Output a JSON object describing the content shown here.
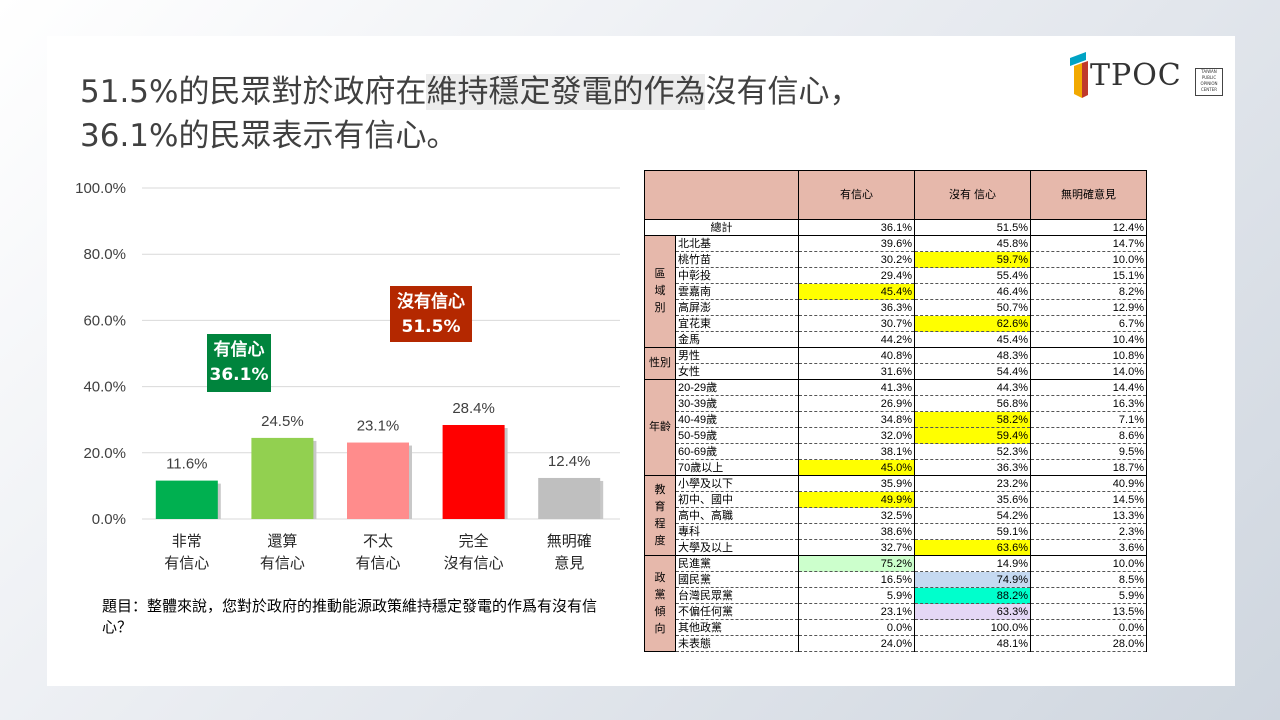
{
  "title_line1_a": "51.5%的民眾對於政府在",
  "title_line1_b": "維持穩定發電的作為",
  "title_line1_c": "沒有信心，",
  "title_line2": "36.1%的民眾表示有信心。",
  "logo_text": "TPOC",
  "logo_small": "TAIWAN PUBLIC OPINION CENTER",
  "note": "題目：整體來說，您對於政府的推動能源政策維持穩定發電的作爲有沒有信心？",
  "colors": {
    "very_confident": "#00b050",
    "somewhat_confident": "#92d050",
    "not_very": "#ff8c8c",
    "not_at_all": "#ff0000",
    "no_opinion": "#bfbfbf",
    "confident_box": "#00843d",
    "not_confident_box": "#b42800",
    "yellow": "#ffff00",
    "green_hl": "#ccffcc",
    "blue_hl": "#c5d9f1",
    "teal_hl": "#00ffcc",
    "purple_hl": "#e4d7f5"
  },
  "chart_data": {
    "type": "bar",
    "categories": [
      "非常\n有信心",
      "還算\n有信心",
      "不太\n有信心",
      "完全\n沒有信心",
      "無明確\n意見"
    ],
    "values": [
      11.6,
      24.5,
      23.1,
      28.4,
      12.4
    ],
    "value_labels": [
      "11.6%",
      "24.5%",
      "23.1%",
      "28.4%",
      "12.4%"
    ],
    "ylim": [
      0,
      100
    ],
    "yticks": [
      "0.0%",
      "20.0%",
      "40.0%",
      "60.0%",
      "80.0%",
      "100.0%"
    ],
    "grid": true,
    "annotations": [
      {
        "label": "有信心",
        "value": "36.1%"
      },
      {
        "label": "沒有信心",
        "value": "51.5%"
      }
    ]
  },
  "table": {
    "headers": [
      "有信心",
      "沒有 信心",
      "無明確意見"
    ],
    "total": {
      "label": "總計",
      "values": [
        "36.1%",
        "51.5%",
        "12.4%"
      ]
    },
    "groups": [
      {
        "name": "區域別",
        "rows": [
          {
            "label": "北北基",
            "values": [
              "39.6%",
              "45.8%",
              "14.7%"
            ],
            "hl": [
              null,
              null,
              null
            ]
          },
          {
            "label": "桃竹苗",
            "values": [
              "30.2%",
              "59.7%",
              "10.0%"
            ],
            "hl": [
              null,
              "yellow",
              null
            ]
          },
          {
            "label": "中彰投",
            "values": [
              "29.4%",
              "55.4%",
              "15.1%"
            ],
            "hl": [
              null,
              null,
              null
            ]
          },
          {
            "label": "雲嘉南",
            "values": [
              "45.4%",
              "46.4%",
              "8.2%"
            ],
            "hl": [
              "yellow",
              null,
              null
            ]
          },
          {
            "label": "高屏澎",
            "values": [
              "36.3%",
              "50.7%",
              "12.9%"
            ],
            "hl": [
              null,
              null,
              null
            ]
          },
          {
            "label": "宜花東",
            "values": [
              "30.7%",
              "62.6%",
              "6.7%"
            ],
            "hl": [
              null,
              "yellow",
              null
            ]
          },
          {
            "label": "金馬",
            "values": [
              "44.2%",
              "45.4%",
              "10.4%"
            ],
            "hl": [
              null,
              null,
              null
            ]
          }
        ]
      },
      {
        "name": "性別",
        "rows": [
          {
            "label": "男性",
            "values": [
              "40.8%",
              "48.3%",
              "10.8%"
            ],
            "hl": [
              null,
              null,
              null
            ]
          },
          {
            "label": "女性",
            "values": [
              "31.6%",
              "54.4%",
              "14.0%"
            ],
            "hl": [
              null,
              null,
              null
            ]
          }
        ]
      },
      {
        "name": "年齡",
        "rows": [
          {
            "label": "20-29歲",
            "values": [
              "41.3%",
              "44.3%",
              "14.4%"
            ],
            "hl": [
              null,
              null,
              null
            ]
          },
          {
            "label": "30-39歲",
            "values": [
              "26.9%",
              "56.8%",
              "16.3%"
            ],
            "hl": [
              null,
              null,
              null
            ]
          },
          {
            "label": "40-49歲",
            "values": [
              "34.8%",
              "58.2%",
              "7.1%"
            ],
            "hl": [
              null,
              "yellow",
              null
            ]
          },
          {
            "label": "50-59歲",
            "values": [
              "32.0%",
              "59.4%",
              "8.6%"
            ],
            "hl": [
              null,
              "yellow",
              null
            ]
          },
          {
            "label": "60-69歲",
            "values": [
              "38.1%",
              "52.3%",
              "9.5%"
            ],
            "hl": [
              null,
              null,
              null
            ]
          },
          {
            "label": "70歲以上",
            "values": [
              "45.0%",
              "36.3%",
              "18.7%"
            ],
            "hl": [
              "yellow",
              null,
              null
            ]
          }
        ]
      },
      {
        "name": "教育程度",
        "rows": [
          {
            "label": "小學及以下",
            "values": [
              "35.9%",
              "23.2%",
              "40.9%"
            ],
            "hl": [
              null,
              null,
              null
            ]
          },
          {
            "label": "初中、國中",
            "values": [
              "49.9%",
              "35.6%",
              "14.5%"
            ],
            "hl": [
              "yellow",
              null,
              null
            ]
          },
          {
            "label": "高中、高職",
            "values": [
              "32.5%",
              "54.2%",
              "13.3%"
            ],
            "hl": [
              null,
              null,
              null
            ]
          },
          {
            "label": "專科",
            "values": [
              "38.6%",
              "59.1%",
              "2.3%"
            ],
            "hl": [
              null,
              null,
              null
            ]
          },
          {
            "label": "大學及以上",
            "values": [
              "32.7%",
              "63.6%",
              "3.6%"
            ],
            "hl": [
              null,
              "yellow",
              null
            ]
          }
        ]
      },
      {
        "name": "政黨傾向",
        "rows": [
          {
            "label": "民進黨",
            "values": [
              "75.2%",
              "14.9%",
              "10.0%"
            ],
            "hl": [
              "green_hl",
              null,
              null
            ]
          },
          {
            "label": "國民黨",
            "values": [
              "16.5%",
              "74.9%",
              "8.5%"
            ],
            "hl": [
              null,
              "blue_hl",
              null
            ]
          },
          {
            "label": "台灣民眾黨",
            "values": [
              "5.9%",
              "88.2%",
              "5.9%"
            ],
            "hl": [
              null,
              "teal_hl",
              null
            ]
          },
          {
            "label": "不偏任何黨",
            "values": [
              "23.1%",
              "63.3%",
              "13.5%"
            ],
            "hl": [
              null,
              "purple_hl",
              null
            ]
          },
          {
            "label": "其他政黨",
            "values": [
              "0.0%",
              "100.0%",
              "0.0%"
            ],
            "hl": [
              null,
              null,
              null
            ]
          },
          {
            "label": "未表態",
            "values": [
              "24.0%",
              "48.1%",
              "28.0%"
            ],
            "hl": [
              null,
              null,
              null
            ]
          }
        ]
      }
    ]
  }
}
